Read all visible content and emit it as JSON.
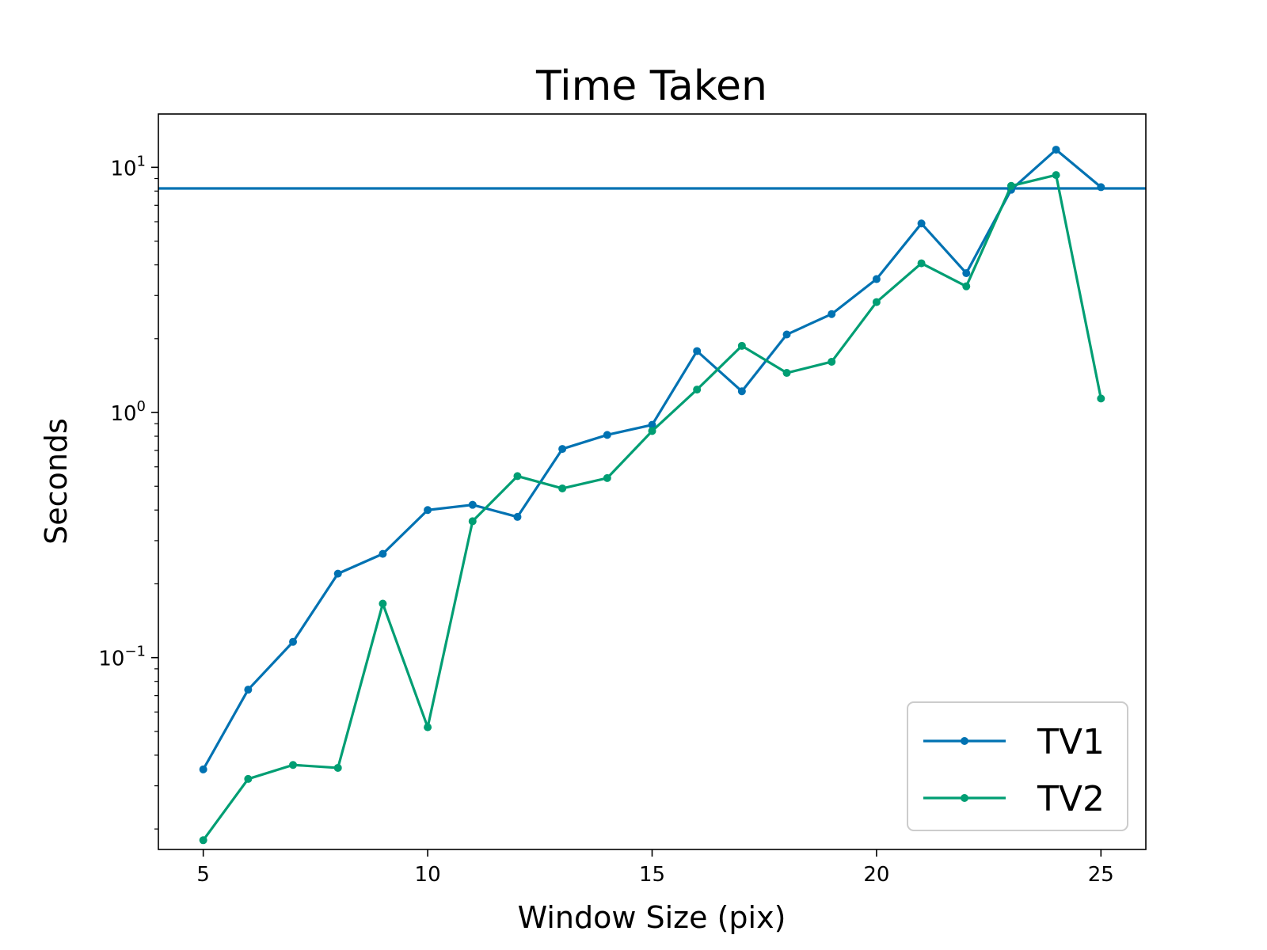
{
  "chart_data": {
    "type": "line",
    "title": "Time Taken",
    "xlabel": "Window Size (pix)",
    "ylabel": "Seconds",
    "xlim": [
      4,
      26
    ],
    "ylim": [
      0.0165,
      16.5
    ],
    "yscale": "log",
    "grid": false,
    "legend_position": "bottom-right",
    "x_ticks": [
      5,
      10,
      15,
      20,
      25
    ],
    "x_tick_labels": [
      "5",
      "10",
      "15",
      "20",
      "25"
    ],
    "y_ticks": [
      {
        "value": 10,
        "base": "10",
        "exp": "1"
      },
      {
        "value": 1,
        "base": "10",
        "exp": "0"
      },
      {
        "value": 0.1,
        "base": "10",
        "exp": "−1"
      }
    ],
    "hline": {
      "y": 8.2,
      "color": "#0072B2"
    },
    "x": [
      5,
      6,
      7,
      8,
      9,
      10,
      11,
      12,
      13,
      14,
      15,
      16,
      17,
      18,
      19,
      20,
      21,
      22,
      23,
      24,
      25
    ],
    "series": [
      {
        "name": "TV1",
        "color": "#0072B2",
        "values": [
          0.035,
          0.074,
          0.116,
          0.22,
          0.265,
          0.4,
          0.42,
          0.375,
          0.71,
          0.81,
          0.89,
          1.78,
          1.22,
          2.08,
          2.52,
          3.5,
          5.9,
          3.7,
          8.1,
          11.8,
          8.3
        ]
      },
      {
        "name": "TV2",
        "color": "#009E73",
        "values": [
          0.018,
          0.032,
          0.0365,
          0.0355,
          0.166,
          0.052,
          0.36,
          0.55,
          0.49,
          0.54,
          0.84,
          1.24,
          1.87,
          1.45,
          1.61,
          2.82,
          4.06,
          3.27,
          8.4,
          9.3,
          1.14
        ]
      }
    ]
  }
}
